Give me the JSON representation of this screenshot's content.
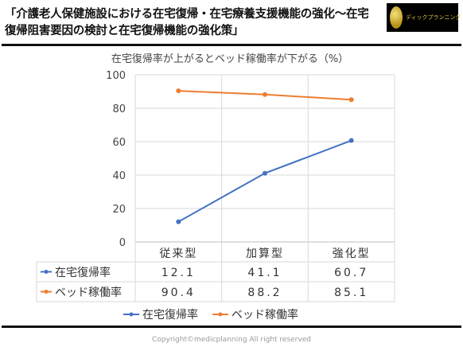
{
  "header": {
    "title": "「介護老人保健施設における在宅復帰・在宅療養支援機能の強化～在宅復帰阻害要因の検討と在宅復帰機能の強化策」",
    "logo_text": "ディックプランニング"
  },
  "footer": {
    "copyright": "Copyright©medicplanning All right reserved"
  },
  "colors": {
    "blue": "#4472c4",
    "orange": "#ed7d31",
    "rule": "#111111",
    "grid": "#d9d9d9"
  },
  "chart_data": {
    "type": "line",
    "title": "在宅復帰率が上がるとベッド稼働率が下がる（%）",
    "categories": [
      "従来型",
      "加算型",
      "強化型"
    ],
    "series": [
      {
        "name": "在宅復帰率",
        "values": [
          12.1,
          41.1,
          60.7
        ],
        "labels": [
          "12.1",
          "41.1",
          "60.7"
        ],
        "color": "#4472c4"
      },
      {
        "name": "ベッド稼働率",
        "values": [
          90.4,
          88.2,
          85.1
        ],
        "labels": [
          "90.4",
          "88.2",
          "85.1"
        ],
        "color": "#ed7d31"
      }
    ],
    "ylim": [
      0,
      100
    ],
    "yticks": [
      "0",
      "20",
      "40",
      "60",
      "80",
      "100"
    ],
    "grid": true,
    "legend": "bottom",
    "data_table": true
  }
}
